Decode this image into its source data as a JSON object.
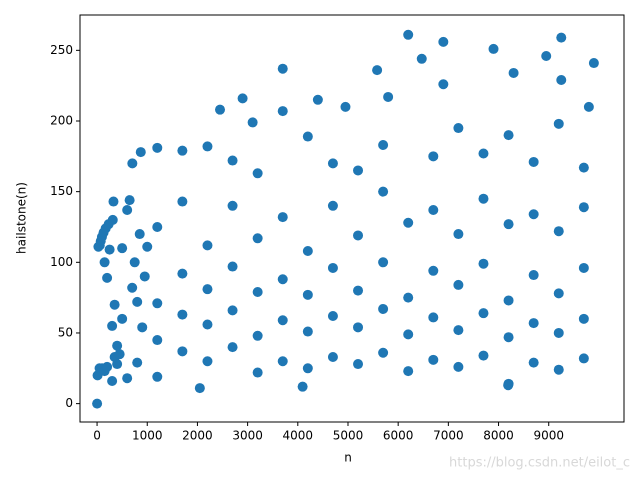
{
  "chart_data": {
    "type": "scatter",
    "x_label": "n",
    "y_label": "hailstone(n)",
    "annotation": "https://blog.csdn.net/eilot_c",
    "color": "#1f77b4",
    "x": [
      1,
      10,
      50,
      100,
      150,
      200,
      250,
      300,
      350,
      400,
      450,
      500,
      600,
      700,
      800,
      900,
      27,
      97,
      871,
      703,
      649,
      327,
      231,
      313,
      171,
      129,
      73,
      54,
      600,
      400,
      300,
      200,
      150,
      350,
      500,
      800,
      950,
      750,
      850,
      1000,
      1200,
      1200,
      1200,
      1200,
      1200,
      1700,
      1700,
      1700,
      1700,
      1700,
      2200,
      2200,
      2200,
      2200,
      2200,
      2700,
      2700,
      2700,
      2700,
      2700,
      3200,
      3200,
      3200,
      3200,
      3200,
      3700,
      3700,
      3700,
      3700,
      3700,
      4200,
      4200,
      4200,
      4200,
      4200,
      4700,
      4700,
      4700,
      4700,
      4700,
      5200,
      5200,
      5200,
      5200,
      5200,
      5700,
      5700,
      5700,
      5700,
      5700,
      6200,
      6200,
      6200,
      6200,
      6200,
      6700,
      6700,
      6700,
      6700,
      6700,
      7200,
      7200,
      7200,
      7200,
      7200,
      7700,
      7700,
      7700,
      7700,
      7700,
      8200,
      8200,
      8200,
      8200,
      8200,
      8700,
      8700,
      8700,
      8700,
      8700,
      9200,
      9200,
      9200,
      9200,
      9200,
      9700,
      9700,
      9700,
      9700,
      9700,
      2450,
      2900,
      3100,
      3700,
      4400,
      4950,
      5580,
      5800,
      6470,
      6900,
      6900,
      7900,
      8300,
      8950,
      9250,
      9250,
      9900,
      9800,
      2048,
      4096,
      8192
    ],
    "y": [
      0,
      20,
      25,
      25,
      23,
      26,
      109,
      16,
      33,
      28,
      35,
      110,
      18,
      82,
      29,
      54,
      111,
      118,
      178,
      170,
      144,
      143,
      127,
      130,
      124,
      121,
      115,
      112,
      137,
      41,
      55,
      89,
      100,
      70,
      60,
      72,
      90,
      100,
      120,
      111,
      19,
      45,
      71,
      125,
      181,
      37,
      63,
      92,
      143,
      179,
      30,
      56,
      81,
      112,
      182,
      40,
      66,
      97,
      140,
      172,
      22,
      48,
      79,
      117,
      163,
      30,
      59,
      88,
      132,
      237,
      25,
      51,
      77,
      108,
      189,
      33,
      62,
      96,
      140,
      170,
      28,
      54,
      80,
      119,
      165,
      36,
      67,
      100,
      150,
      183,
      23,
      49,
      75,
      128,
      261,
      31,
      61,
      94,
      137,
      175,
      26,
      52,
      84,
      120,
      195,
      34,
      64,
      99,
      145,
      177,
      14,
      47,
      73,
      127,
      190,
      29,
      57,
      91,
      134,
      171,
      24,
      50,
      78,
      122,
      198,
      32,
      60,
      96,
      139,
      167,
      208,
      216,
      199,
      207,
      215,
      210,
      236,
      217,
      244,
      256,
      226,
      251,
      234,
      246,
      259,
      229,
      241,
      210,
      11,
      12,
      13
    ],
    "xlim": [
      -340,
      10500
    ],
    "ylim": [
      -13,
      275
    ],
    "xticks": [
      0,
      1000,
      2000,
      3000,
      4000,
      5000,
      6000,
      7000,
      8000,
      9000
    ],
    "yticks": [
      0,
      50,
      100,
      150,
      200,
      250
    ]
  }
}
